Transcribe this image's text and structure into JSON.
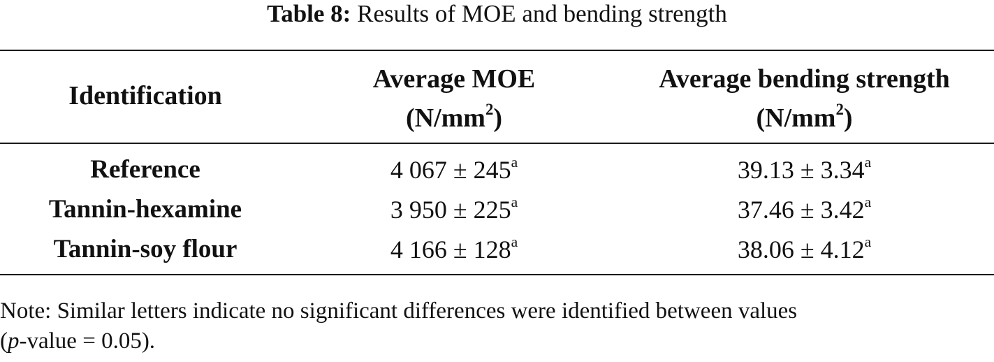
{
  "caption": {
    "label": "Table 8:",
    "text": "Results of MOE and bending strength"
  },
  "table": {
    "headers": {
      "identification": "Identification",
      "moe_line1": "Average MOE",
      "moe_unit_open": "(N/mm",
      "moe_unit_sup": "2",
      "moe_unit_close": ")",
      "bending_line1": "Average bending strength",
      "bending_unit_open": "(N/mm",
      "bending_unit_sup": "2",
      "bending_unit_close": ")"
    },
    "rows": [
      {
        "label": "Reference",
        "moe": "4 067 ± 245",
        "moe_sup": "a",
        "bending": "39.13 ± 3.34",
        "bending_sup": "a"
      },
      {
        "label": "Tannin-hexamine",
        "moe": "3 950 ± 225",
        "moe_sup": "a",
        "bending": "37.46 ± 3.42",
        "bending_sup": "a"
      },
      {
        "label": "Tannin-soy flour",
        "moe": "4 166 ± 128",
        "moe_sup": "a",
        "bending": "38.06 ± 4.12",
        "bending_sup": "a"
      }
    ]
  },
  "note": {
    "line1": "Note: Similar letters indicate no significant differences were identified between values",
    "line2_open": "(",
    "line2_italic": "p",
    "line2_rest": "-value = 0.05)."
  }
}
